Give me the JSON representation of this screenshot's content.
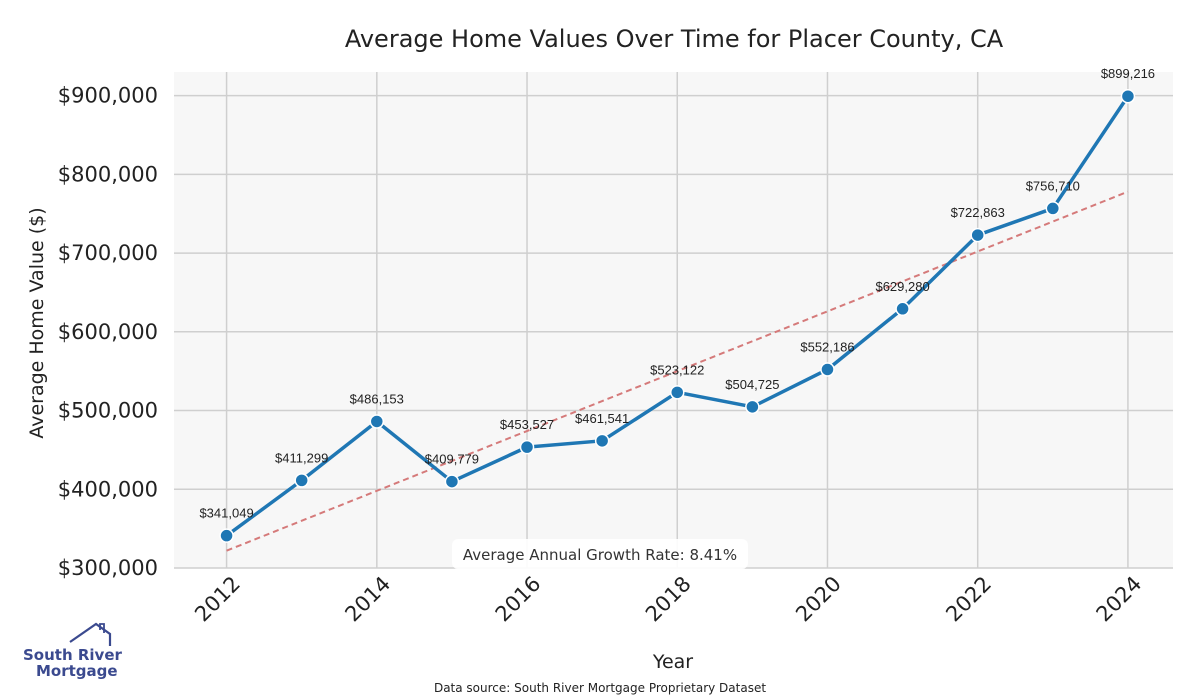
{
  "chart_data": {
    "type": "line",
    "title": "Average Home Values Over Time for Placer County, CA",
    "xlabel": "Year",
    "ylabel": "Average Home Value ($)",
    "x": [
      2012,
      2013,
      2014,
      2015,
      2016,
      2017,
      2018,
      2019,
      2020,
      2021,
      2022,
      2023,
      2024
    ],
    "series": [
      {
        "values": [
          341049,
          411299,
          486153,
          409779,
          453527,
          461541,
          523122,
          504725,
          552186,
          629280,
          722863,
          756710,
          899216
        ],
        "labels": [
          "$341,049",
          "$411,299",
          "$486,153",
          "$409,779",
          "$453,527",
          "$461,541",
          "$523,122",
          "$504,725",
          "$552,186",
          "$629,280",
          "$722,863",
          "$756,710",
          "$899,216"
        ],
        "color": "#1f77b4"
      }
    ],
    "trendline": {
      "start": 322000,
      "end": 778000,
      "color": "#d57a7a",
      "style": "dashed"
    },
    "xticks": [
      "2012",
      "2014",
      "2016",
      "2018",
      "2020",
      "2022",
      "2024"
    ],
    "xtick_values": [
      2012,
      2014,
      2016,
      2018,
      2020,
      2022,
      2024
    ],
    "yticks": [
      "$300,000",
      "$400,000",
      "$500,000",
      "$600,000",
      "$700,000",
      "$800,000",
      "$900,000"
    ],
    "ytick_values": [
      300000,
      400000,
      500000,
      600000,
      700000,
      800000,
      900000
    ],
    "xlim": [
      2011.3,
      2024.6
    ],
    "ylim": [
      300000,
      930000
    ],
    "grid": true,
    "annotation": "Average Annual Growth Rate: 8.41%"
  },
  "source_note": "Data source: South River Mortgage Proprietary Dataset",
  "logo": {
    "line1": "South River",
    "line2": "Mortgage",
    "color": "#3b4a8f"
  }
}
